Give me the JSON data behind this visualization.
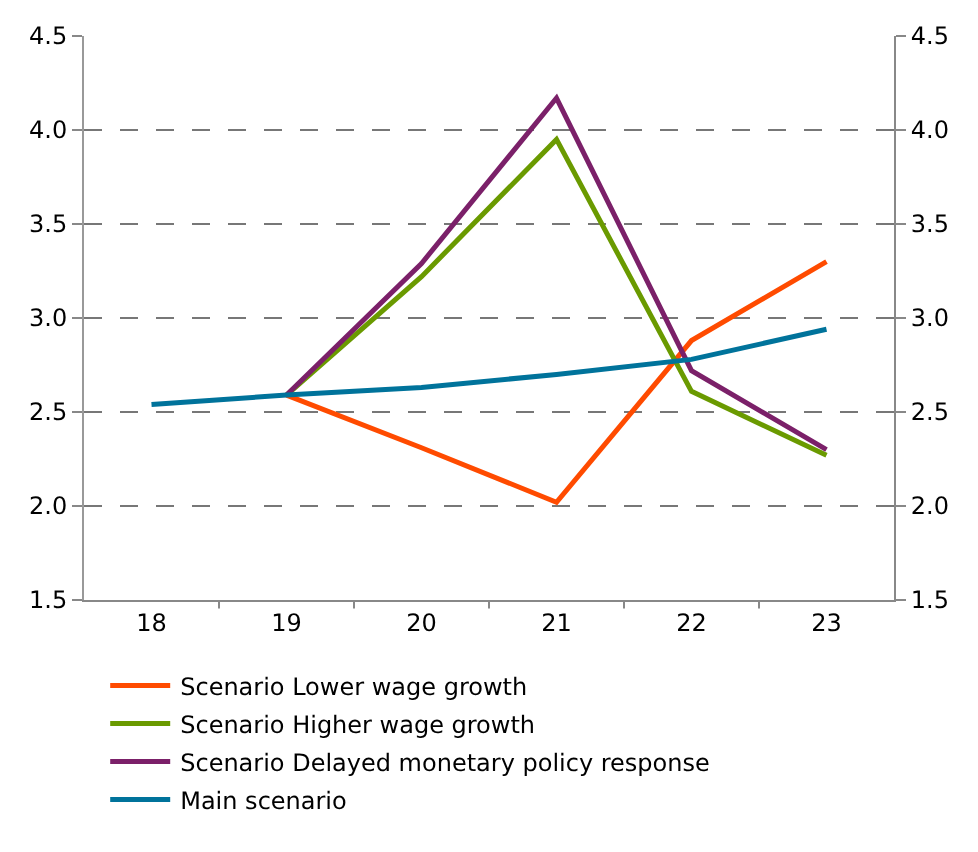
{
  "chart_data": {
    "type": "line",
    "categories": [
      "18",
      "19",
      "20",
      "21",
      "22",
      "23"
    ],
    "series": [
      {
        "name": "Scenario Lower wage growth",
        "color": "#ff4b00",
        "values": [
          null,
          2.59,
          2.31,
          2.02,
          2.88,
          3.3
        ]
      },
      {
        "name": "Scenario Higher wage growth",
        "color": "#6a9a00",
        "values": [
          null,
          2.59,
          3.22,
          3.95,
          2.61,
          2.27
        ]
      },
      {
        "name": "Scenario Delayed monetary policy response",
        "color": "#7b2069",
        "values": [
          null,
          2.59,
          3.29,
          4.17,
          2.72,
          2.3
        ]
      },
      {
        "name": "Main scenario",
        "color": "#00739b",
        "values": [
          2.54,
          2.59,
          2.63,
          2.7,
          2.78,
          2.94
        ]
      }
    ],
    "ylim": [
      1.5,
      4.5
    ],
    "yticks": [
      1.5,
      {
        "value": 2,
        "label": "2.0"
      },
      2.5,
      {
        "value": 3,
        "label": "3.0"
      },
      3.5,
      {
        "value": 4,
        "label": "4.0"
      },
      4.5
    ],
    "y2lim": [
      1.5,
      4.5
    ],
    "y2ticks": [
      1.5,
      {
        "value": 2,
        "label": "2.0"
      },
      2.5,
      {
        "value": 3,
        "label": "3.0"
      },
      3.5,
      {
        "value": 4,
        "label": "4.0"
      },
      4.5
    ],
    "grid": "y",
    "line_style": "solid",
    "marker": "none",
    "legend": "bottom"
  }
}
